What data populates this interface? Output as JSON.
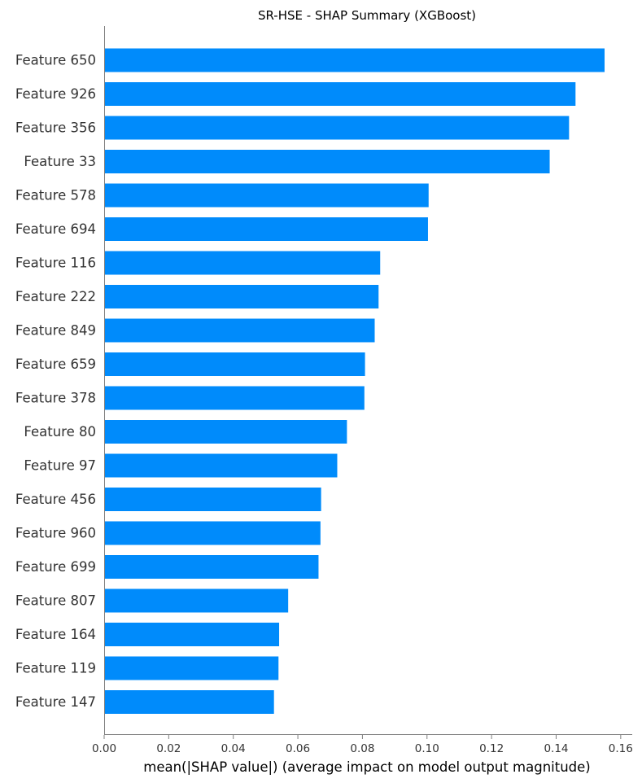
{
  "chart_data": {
    "type": "bar",
    "orientation": "horizontal",
    "title": "SR-HSE - SHAP Summary (XGBoost)",
    "xlabel": "mean(|SHAP value|) (average impact on model output magnitude)",
    "ylabel": "",
    "xlim": [
      0,
      0.1625
    ],
    "xticks": [
      0.0,
      0.02,
      0.04,
      0.06,
      0.08,
      0.1,
      0.12,
      0.14,
      0.16
    ],
    "xtick_labels": [
      "0.00",
      "0.02",
      "0.04",
      "0.06",
      "0.08",
      "0.10",
      "0.12",
      "0.14",
      "0.16"
    ],
    "grid": false,
    "bar_color": "#008bfb",
    "categories": [
      "Feature 650",
      "Feature 926",
      "Feature 356",
      "Feature 33",
      "Feature 578",
      "Feature 694",
      "Feature 116",
      "Feature 222",
      "Feature 849",
      "Feature 659",
      "Feature 378",
      "Feature 80",
      "Feature 97",
      "Feature 456",
      "Feature 960",
      "Feature 699",
      "Feature 807",
      "Feature 164",
      "Feature 119",
      "Feature 147"
    ],
    "values": [
      0.155,
      0.146,
      0.144,
      0.138,
      0.1005,
      0.1003,
      0.0855,
      0.085,
      0.0838,
      0.0808,
      0.0806,
      0.0752,
      0.0722,
      0.0672,
      0.067,
      0.0664,
      0.057,
      0.0542,
      0.054,
      0.0526
    ]
  }
}
